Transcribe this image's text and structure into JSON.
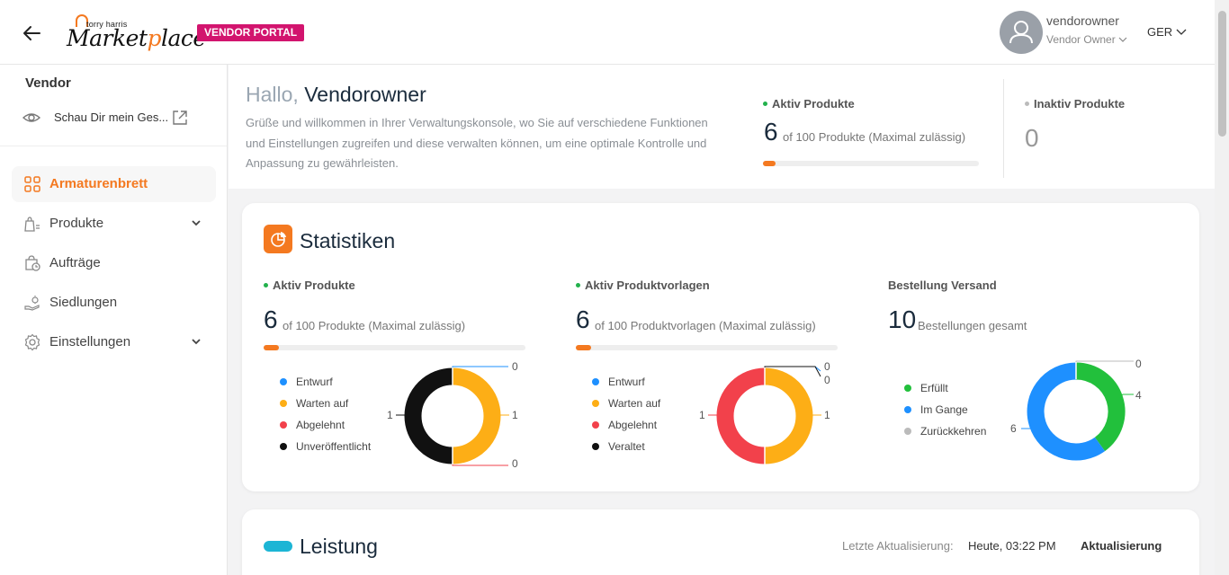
{
  "header": {
    "logo_small": "torry harris",
    "logo_big_prefix": "Market",
    "logo_big_o": "p",
    "logo_big_suffix": "lace",
    "badge": "VENDOR PORTAL",
    "user_name": "vendorowner",
    "user_role": "Vendor Owner",
    "language": "GER"
  },
  "sidebar": {
    "title": "Vendor",
    "shop_link": "Schau Dir mein Ges...",
    "items": [
      {
        "label": "Armaturenbrett",
        "icon": "dashboard-icon",
        "active": true
      },
      {
        "label": "Produkte",
        "icon": "products-icon",
        "expandable": true
      },
      {
        "label": "Aufträge",
        "icon": "orders-icon"
      },
      {
        "label": "Siedlungen",
        "icon": "settlements-icon"
      },
      {
        "label": "Einstellungen",
        "icon": "settings-icon",
        "expandable": true
      }
    ]
  },
  "welcome": {
    "greeting": "Hallo,",
    "name": "Vendorowner",
    "text": "Grüße und willkommen in Ihrer Verwaltungskonsole, wo Sie auf verschiedene Funktionen und Einstellungen zugreifen und diese verwalten können, um eine optimale Kontrolle und Anpassung zu gewährleisten.",
    "active_label": "Aktiv Produkte",
    "active_count": "6",
    "active_suffix": "of 100 Produkte (Maximal zulässig)",
    "active_progress": 0.06,
    "inactive_label": "Inaktiv Produkte",
    "inactive_count": "0"
  },
  "stats": {
    "title": "Statistiken",
    "products": {
      "label": "Aktiv Produkte",
      "count": "6",
      "suffix": "of 100 Produkte (Maximal zulässig)",
      "progress": 0.06,
      "legend": [
        "Entwurf",
        "Warten auf",
        "Abgelehnt",
        "Unveröffentlicht"
      ],
      "colors": [
        "#1e90ff",
        "#fdae16",
        "#f2414b",
        "#111111"
      ],
      "values": [
        0,
        1,
        0,
        1
      ]
    },
    "templates": {
      "label": "Aktiv Produktvorlagen",
      "count": "6",
      "suffix": "of 100 Produktvorlagen (Maximal zulässig)",
      "progress": 0.06,
      "legend": [
        "Entwurf",
        "Warten auf",
        "Abgelehnt",
        "Veraltet"
      ],
      "colors": [
        "#1e90ff",
        "#fdae16",
        "#f2414b",
        "#111111"
      ],
      "values": [
        0,
        1,
        1,
        0
      ]
    },
    "orders": {
      "label": "Bestellung Versand",
      "count": "10",
      "suffix": "Bestellungen gesamt",
      "legend": [
        "Erfüllt",
        "Im Gange",
        "Zurückkehren"
      ],
      "colors": [
        "#22c03c",
        "#1e90ff",
        "#bbbbbb"
      ],
      "values": [
        4,
        6,
        0
      ]
    }
  },
  "performance": {
    "title": "Leistung",
    "updated_label": "Letzte Aktualisierung:",
    "updated_time": "Heute, 03:22 PM",
    "refresh": "Aktualisierung"
  },
  "chart_data": [
    {
      "type": "pie",
      "categories": [
        "Entwurf",
        "Warten auf",
        "Abgelehnt",
        "Unveröffentlicht"
      ],
      "values": [
        0,
        1,
        0,
        1
      ]
    },
    {
      "type": "pie",
      "categories": [
        "Entwurf",
        "Warten auf",
        "Abgelehnt",
        "Veraltet"
      ],
      "values": [
        0,
        1,
        1,
        0
      ]
    },
    {
      "type": "pie",
      "categories": [
        "Erfüllt",
        "Im Gange",
        "Zurückkehren"
      ],
      "values": [
        4,
        6,
        0
      ]
    }
  ]
}
